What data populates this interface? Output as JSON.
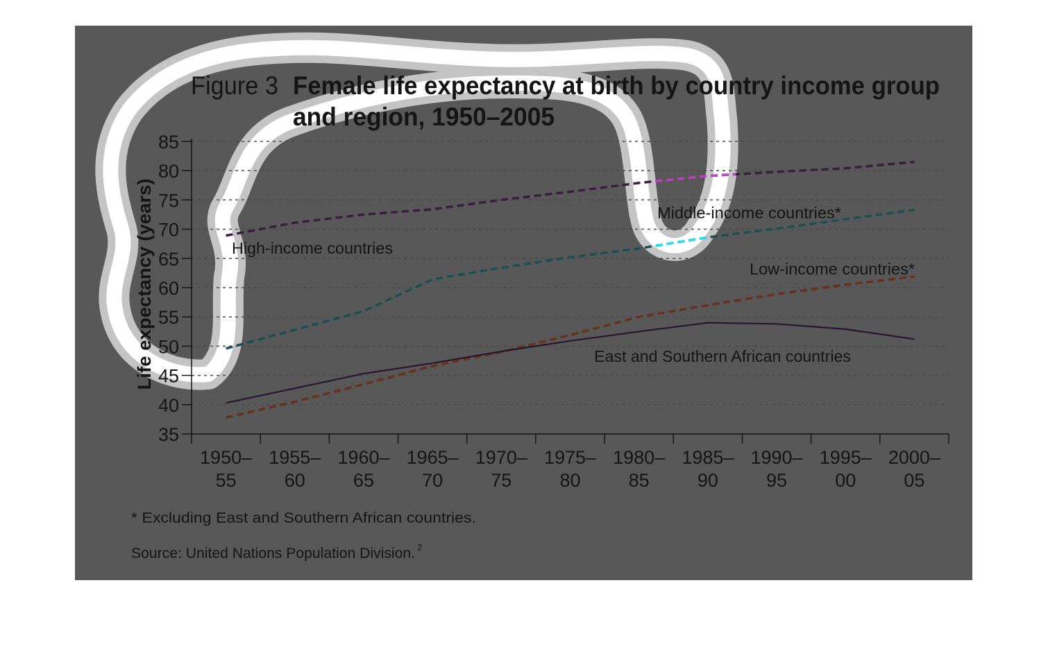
{
  "figure": {
    "number": "Figure 3",
    "title_line1": "Female life expectancy at birth by country income group",
    "title_line2": "and region, 1950–2005",
    "footnote": "* Excluding East and Southern African countries.",
    "source": "Source: United Nations Population Division.",
    "source_superscript": "2"
  },
  "colors": {
    "panel": "#585858",
    "highlight_halo": "#c4c4c4",
    "highlight_core": "#ffffff",
    "axis": "#151515",
    "grid": "#4a4a4a",
    "high_income": "#3a1d3f",
    "high_income_highlight": "#c040c8",
    "middle_income": "#1b4f55",
    "middle_income_highlight": "#22e0f0",
    "low_income": "#6a3018",
    "east_southern_africa": "#2a1530"
  },
  "chart_data": {
    "type": "line",
    "ylabel": "Life expectancy (years)",
    "xlabel": "",
    "ylim": [
      35,
      85
    ],
    "yticks": [
      "85",
      "80",
      "75",
      "70",
      "65",
      "60",
      "55",
      "50",
      "45",
      "40",
      "35"
    ],
    "grid": "horizontal dashed",
    "categories": [
      [
        "1950–",
        "55"
      ],
      [
        "1955–",
        "60"
      ],
      [
        "1960–",
        "65"
      ],
      [
        "1965–",
        "70"
      ],
      [
        "1970–",
        "75"
      ],
      [
        "1975–",
        "80"
      ],
      [
        "1980–",
        "85"
      ],
      [
        "1985–",
        "90"
      ],
      [
        "1990–",
        "95"
      ],
      [
        "1995–",
        "00"
      ],
      [
        "2000–",
        "05"
      ]
    ],
    "series": [
      {
        "name": "High-income countries",
        "style": "dashed",
        "values": [
          68.9,
          71.1,
          72.5,
          73.4,
          75.0,
          76.4,
          77.9,
          79.1,
          79.8,
          80.4,
          81.5
        ]
      },
      {
        "name": "Middle-income countries*",
        "style": "dashed",
        "values": [
          49.6,
          52.8,
          56.0,
          61.4,
          63.4,
          65.2,
          66.7,
          68.6,
          70.1,
          71.7,
          73.3
        ]
      },
      {
        "name": "Low-income countries*",
        "style": "dashed",
        "values": [
          37.8,
          40.5,
          43.5,
          46.6,
          49.0,
          51.9,
          55.0,
          57.0,
          58.9,
          60.5,
          61.9
        ]
      },
      {
        "name": "East and Southern African countries",
        "style": "solid",
        "values": [
          40.3,
          42.8,
          45.3,
          47.1,
          49.1,
          50.9,
          52.5,
          54.0,
          53.8,
          52.9,
          51.2
        ]
      }
    ]
  }
}
